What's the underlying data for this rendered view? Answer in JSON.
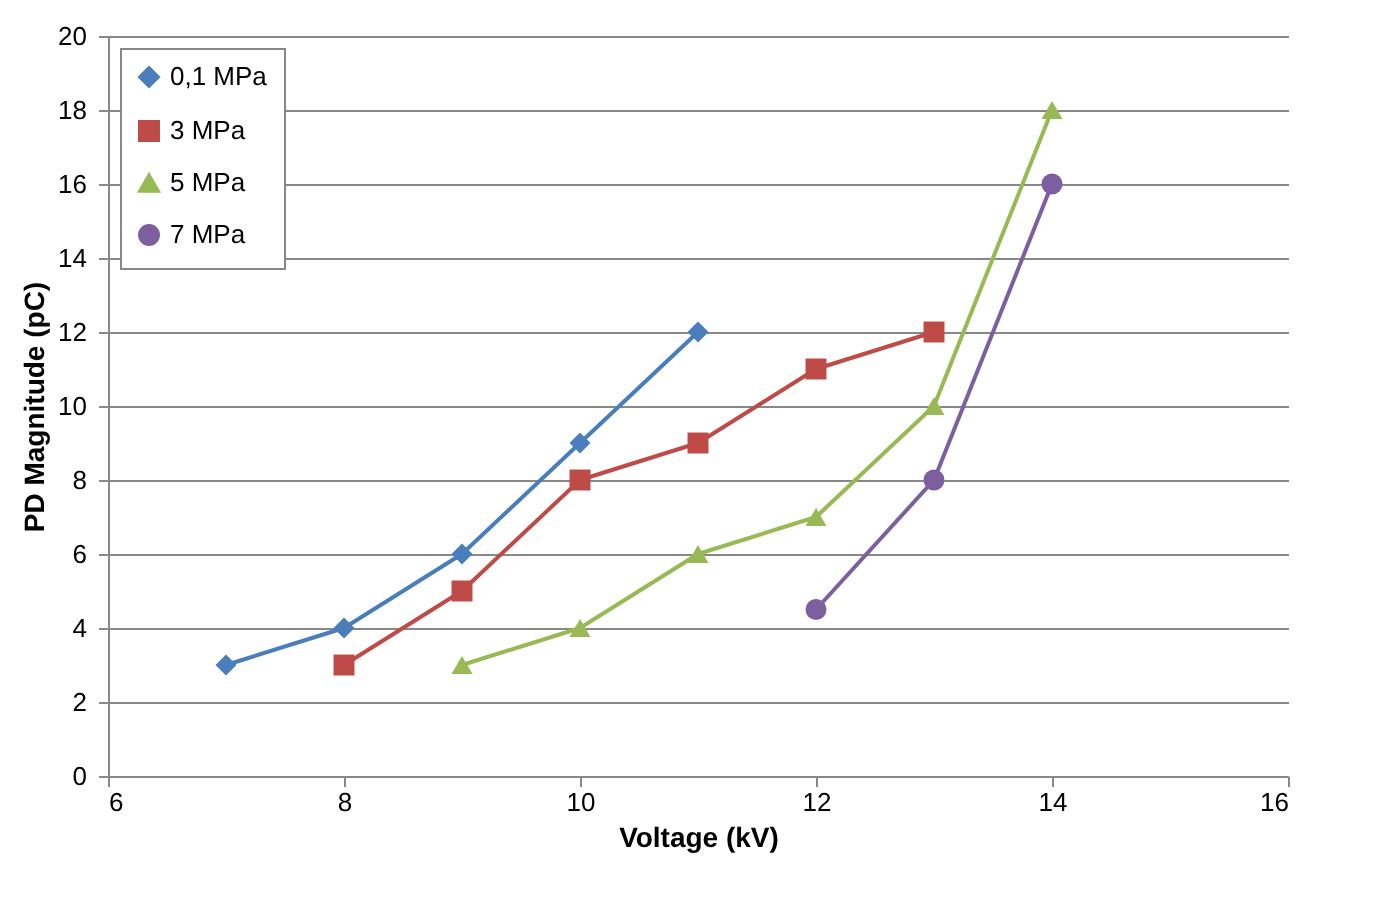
{
  "chart_data": {
    "type": "line",
    "xlabel": "Voltage (kV)",
    "ylabel": "PD Magnitude (pC)",
    "xlim": [
      6,
      16
    ],
    "xticks": [
      6,
      8,
      10,
      12,
      14,
      16
    ],
    "ylim": [
      0,
      20
    ],
    "yticks": [
      0,
      2,
      4,
      6,
      8,
      10,
      12,
      14,
      16,
      18,
      20
    ],
    "grid": "y",
    "legend": "top left",
    "line_style": "solid",
    "series": [
      {
        "name": "0,1 MPa",
        "color": "#4a7ebb",
        "marker": "diamond",
        "x": [
          7,
          8,
          9,
          10,
          11
        ],
        "values": [
          3,
          4,
          6,
          9,
          12
        ]
      },
      {
        "name": "3 MPa",
        "color": "#be4b48",
        "marker": "square",
        "x": [
          8,
          9,
          10,
          11,
          12,
          13
        ],
        "values": [
          3,
          5,
          8,
          9,
          11,
          12
        ]
      },
      {
        "name": "5 MPa",
        "color": "#98b954",
        "marker": "triangle",
        "x": [
          9,
          10,
          11,
          12,
          13,
          14
        ],
        "values": [
          3,
          4,
          6,
          7,
          10,
          18
        ]
      },
      {
        "name": "7 MPa",
        "color": "#7d5fa0",
        "marker": "circle",
        "x": [
          12,
          13,
          14
        ],
        "values": [
          4.5,
          8,
          16
        ]
      }
    ]
  }
}
